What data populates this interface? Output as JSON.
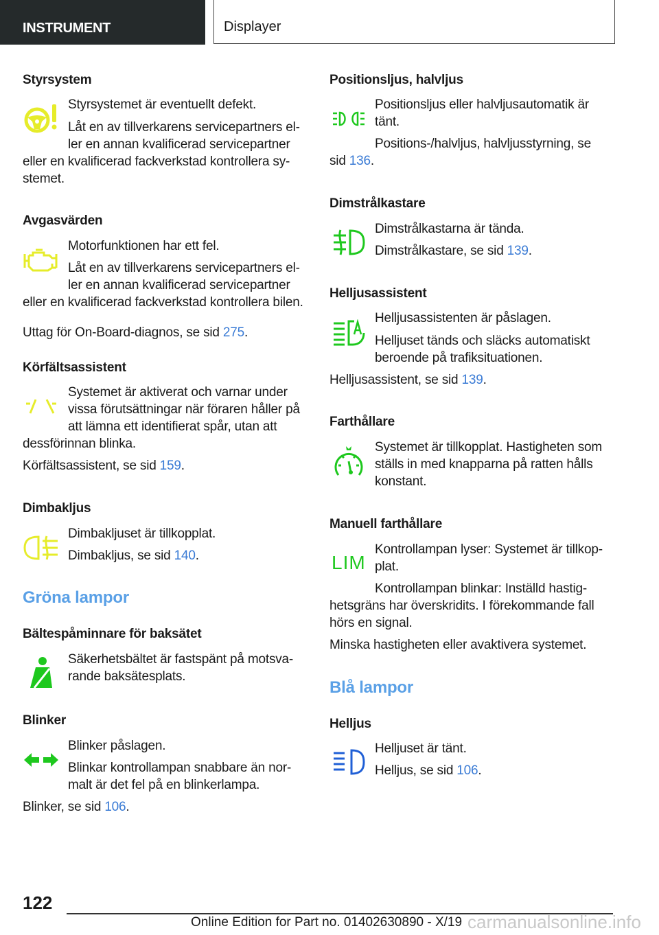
{
  "header": {
    "section": "INSTRUMENT",
    "title": "Displayer"
  },
  "columns": [
    {
      "blocks": [
        {
          "kind": "h",
          "text": "Styrsystem"
        },
        {
          "kind": "p",
          "text": "Styrsystemet är eventuellt defekt.",
          "indent": true
        },
        {
          "kind": "p",
          "text": "Låt en av tillverkarens servicepartners el-",
          "indent": true
        },
        {
          "kind": "p",
          "text": "ler en annan kvalificerad servicepartner",
          "indent": true
        },
        {
          "kind": "p",
          "text": "eller en kvalificerad fackverkstad kontrollera sy-"
        },
        {
          "kind": "p",
          "text": "stemet."
        },
        {
          "kind": "h",
          "text": "Avgasvärden"
        },
        {
          "kind": "p",
          "text": "Motorfunktionen har ett fel.",
          "indent": true
        },
        {
          "kind": "p",
          "text": "Låt en av tillverkarens servicepartners el-",
          "indent": true
        },
        {
          "kind": "p",
          "text": "ler en annan kvalificerad servicepartner",
          "indent": true
        },
        {
          "kind": "p",
          "text": "eller en kvalificerad fackverkstad kontrollera bilen."
        },
        {
          "kind": "p",
          "text": "Uttag för On-Board-diagnos, se sid ",
          "link": "275",
          "end": "."
        },
        {
          "kind": "h",
          "text": "Körfältsassistent"
        },
        {
          "kind": "p",
          "text": "Systemet är aktiverat och varnar under",
          "indent": true
        },
        {
          "kind": "p",
          "text": "vissa förutsättningar när föraren håller på",
          "indent": true
        },
        {
          "kind": "p",
          "text": "att lämna ett identifierat spår, utan att",
          "indent": true
        },
        {
          "kind": "p",
          "text": "dessförinnan blinka."
        },
        {
          "kind": "p",
          "text": "Körfältsassistent, se sid ",
          "link": "159",
          "end": "."
        },
        {
          "kind": "h",
          "text": "Dimbakljus"
        },
        {
          "kind": "p",
          "text": "Dimbakljuset är tillkopplat.",
          "indent": true
        },
        {
          "kind": "p",
          "text": "Dimbakljus, se sid ",
          "link": "140",
          "end": ".",
          "indent": true
        },
        {
          "kind": "sec",
          "text": "Gröna lampor"
        },
        {
          "kind": "h",
          "text": "Bältespåminnare för baksätet"
        },
        {
          "kind": "p",
          "text": "Säkerhetsbältet är fastspänt på motsva-",
          "indent": true
        },
        {
          "kind": "p",
          "text": "rande baksätesplats.",
          "indent": true
        },
        {
          "kind": "h",
          "text": "Blinker"
        },
        {
          "kind": "p",
          "text": "Blinker påslagen.",
          "indent": true
        },
        {
          "kind": "p",
          "text": "Blinkar kontrollampan snabbare än nor-",
          "indent": true
        },
        {
          "kind": "p",
          "text": "malt är det fel på en blinkerlampa.",
          "indent": true
        },
        {
          "kind": "p",
          "text": "Blinker, se sid ",
          "link": "106",
          "end": "."
        }
      ]
    },
    {
      "blocks": [
        {
          "kind": "h",
          "text": "Positionsljus, halvljus"
        },
        {
          "kind": "p",
          "text": "Positionsljus eller halvljusautomatik är",
          "indent": true
        },
        {
          "kind": "p",
          "text": "tänt.",
          "indent": true
        },
        {
          "kind": "p",
          "text": "Positions-/halvljus, halvljusstyrning, se",
          "indent": true
        },
        {
          "kind": "p",
          "text": "sid ",
          "link": "136",
          "end": "."
        },
        {
          "kind": "h",
          "text": "Dimstrålkastare"
        },
        {
          "kind": "p",
          "text": "Dimstrålkastarna är tända.",
          "indent": true
        },
        {
          "kind": "p",
          "text": "Dimstrålkastare, se sid ",
          "link": "139",
          "end": ".",
          "indent": true
        },
        {
          "kind": "h",
          "text": "Helljusassistent"
        },
        {
          "kind": "p",
          "text": "Helljusassistenten är påslagen.",
          "indent": true
        },
        {
          "kind": "p",
          "text": "Helljuset tänds och släcks automatiskt",
          "indent": true
        },
        {
          "kind": "p",
          "text": "beroende på trafiksituationen.",
          "indent": true
        },
        {
          "kind": "p",
          "text": "Helljusassistent, se sid ",
          "link": "139",
          "end": "."
        },
        {
          "kind": "h",
          "text": "Farthållare"
        },
        {
          "kind": "p",
          "text": "Systemet är tillkopplat. Hastigheten som",
          "indent": true
        },
        {
          "kind": "p",
          "text": "ställs in med knapparna på ratten hålls",
          "indent": true
        },
        {
          "kind": "p",
          "text": "konstant.",
          "indent": true
        },
        {
          "kind": "h",
          "text": "Manuell farthållare"
        },
        {
          "kind": "p",
          "text": "Kontrollampan lyser: Systemet är tillkop-",
          "indent": true
        },
        {
          "kind": "p",
          "text": "plat.",
          "indent": true
        },
        {
          "kind": "p",
          "text": "Kontrollampan blinkar: Inställd hastig-",
          "indent": true
        },
        {
          "kind": "p",
          "text": "hetsgräns har överskridits. I förekommande fall"
        },
        {
          "kind": "p",
          "text": "hörs en signal."
        },
        {
          "kind": "p",
          "text": "Minska hastigheten eller avaktivera systemet."
        },
        {
          "kind": "sec",
          "text": "Blå lampor"
        },
        {
          "kind": "h",
          "text": "Helljus"
        },
        {
          "kind": "p",
          "text": "Helljuset är tänt.",
          "indent": true
        },
        {
          "kind": "p",
          "text": "Helljus, se sid ",
          "link": "106",
          "end": ".",
          "indent": true
        }
      ]
    }
  ],
  "icons": {
    "lim_text": "LIM",
    "yellow": "#e6ec2a",
    "green": "#1ec81e",
    "blue": "#1f5fd6"
  },
  "footer": {
    "page_number": "122",
    "edition": "Online Edition for Part no. 01402630890 - X/19",
    "watermark": "carmanualsonline.info"
  }
}
